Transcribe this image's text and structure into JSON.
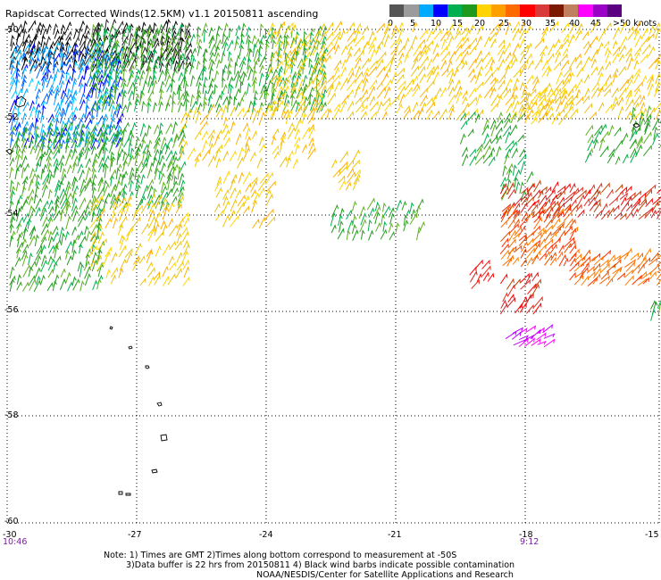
{
  "title": "Rapidscat Corrected Winds(12.5KM) v1.1 20150811 ascending",
  "legend": {
    "colors": [
      "#555555",
      "#9b9b9b",
      "#00aaff",
      "#0000ff",
      "#00b050",
      "#1e9a1e",
      "#ffd400",
      "#ffa000",
      "#ff6a00",
      "#ff0000",
      "#d83a3a",
      "#7a1a00",
      "#c08060",
      "#ff00ff",
      "#9b00c8",
      "#5a0080"
    ],
    "labels": [
      "0",
      "5",
      "10",
      "15",
      "20",
      "25",
      "30",
      "35",
      "40",
      "45",
      ">50 knots"
    ]
  },
  "map": {
    "lat_labels": [
      "-50",
      "-52",
      "-54",
      "-56",
      "-58",
      "-60"
    ],
    "lon_labels": [
      "-30",
      "-27",
      "-24",
      "-21",
      "-18",
      "-15"
    ],
    "time_labels": [
      "10:46",
      "9:12"
    ]
  },
  "notes": {
    "line1": "Note: 1) Times are GMT 2)Times along bottom correspond to measurement at -50S",
    "line2": "3)Data buffer is 22 hrs from 20150811 4) Black wind barbs indicate possible contamination",
    "line3": "NOAA/NESDIS/Center for Satellite Applications and Research"
  }
}
